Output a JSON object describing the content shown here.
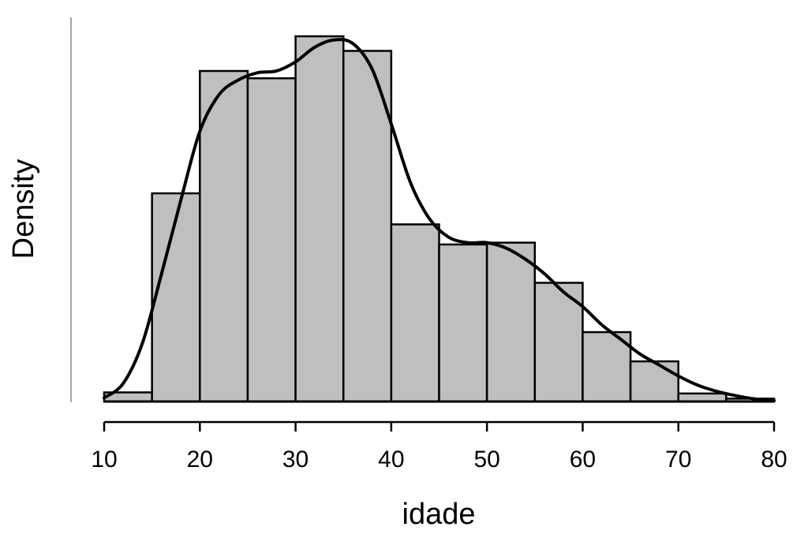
{
  "chart_data": {
    "type": "bar",
    "subtype": "histogram-with-density",
    "title": "",
    "xlabel": "idade",
    "ylabel": "Density",
    "xlim": [
      10,
      80
    ],
    "ylim": [
      0,
      1
    ],
    "y_ticks_shown": false,
    "x_ticks": [
      10,
      20,
      30,
      40,
      50,
      60,
      70,
      80
    ],
    "x_tick_labels": [
      "10",
      "20",
      "30",
      "40",
      "50",
      "60",
      "70",
      "80"
    ],
    "bin_edges": [
      10,
      15,
      20,
      25,
      30,
      35,
      40,
      45,
      50,
      55,
      60,
      65,
      70,
      75,
      80
    ],
    "values": [
      0.025,
      0.57,
      0.905,
      0.885,
      1.0,
      0.96,
      0.485,
      0.43,
      0.435,
      0.325,
      0.19,
      0.11,
      0.022,
      0.008
    ],
    "density_curve": {
      "x": [
        10,
        12,
        14,
        16,
        18,
        20,
        22,
        24,
        26,
        28,
        30,
        32,
        34,
        36,
        38,
        40,
        42,
        44,
        46,
        48,
        50,
        52,
        54,
        56,
        58,
        60,
        62,
        64,
        66,
        68,
        70,
        72,
        74,
        76,
        78,
        80
      ],
      "y": [
        0.01,
        0.05,
        0.16,
        0.35,
        0.55,
        0.74,
        0.84,
        0.88,
        0.9,
        0.905,
        0.93,
        0.97,
        0.99,
        0.98,
        0.91,
        0.76,
        0.6,
        0.5,
        0.45,
        0.435,
        0.435,
        0.42,
        0.39,
        0.35,
        0.3,
        0.26,
        0.21,
        0.17,
        0.13,
        0.1,
        0.07,
        0.045,
        0.028,
        0.016,
        0.007,
        0.003
      ]
    },
    "colors": {
      "bar_fill": "#bfbfbf",
      "bar_stroke": "#000000",
      "curve": "#000000",
      "axis": "#000000",
      "y_axis_line": "#888888"
    },
    "grid": false,
    "legend": "none"
  }
}
